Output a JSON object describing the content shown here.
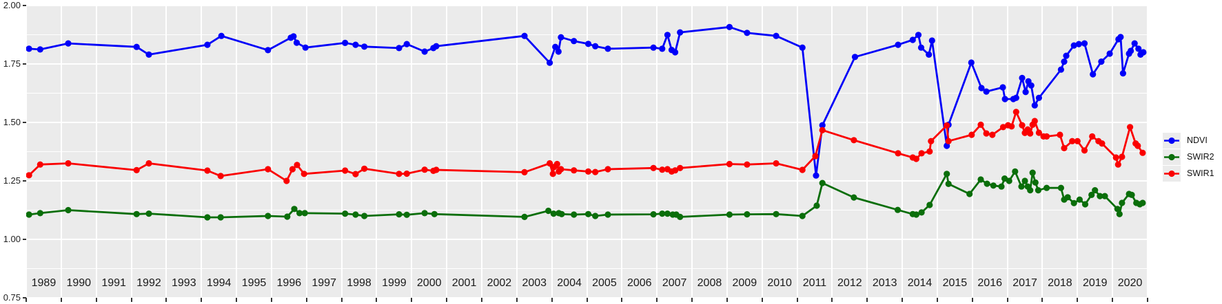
{
  "figure": {
    "panel_bg": "#ebebeb",
    "grid_color": "#ffffff",
    "axis_text_color": "#1f1f1f",
    "tick_color": "#333333"
  },
  "chart_data": {
    "type": "line",
    "title": "",
    "xlabel": "",
    "ylabel": "",
    "grid": true,
    "legend_position": "right",
    "x_axis": {
      "range": [
        1989,
        2021
      ],
      "year_labels": [
        "1989",
        "1990",
        "1991",
        "1992",
        "1993",
        "1994",
        "1995",
        "1996",
        "1997",
        "1998",
        "1999",
        "2000",
        "2001",
        "2002",
        "2003",
        "2004",
        "2005",
        "2006",
        "2007",
        "2008",
        "2009",
        "2010",
        "2011",
        "2012",
        "2013",
        "2014",
        "2015",
        "2016",
        "2017",
        "2018",
        "2019",
        "2020"
      ]
    },
    "y_axis": {
      "range": [
        0.75,
        2.0
      ],
      "breaks": [
        2.0,
        1.75,
        1.5,
        1.25,
        1.0,
        0.75
      ],
      "labels": [
        "2.00",
        "1.75",
        "1.50",
        "1.25",
        "1.00",
        "0.75"
      ],
      "minor_breaks": [
        1.875,
        1.625,
        1.375,
        1.125,
        0.875
      ]
    },
    "legend_entries": [
      {
        "label": "NDVI",
        "color": "#0000f8"
      },
      {
        "label": "SWIR2",
        "color": "#0a6e0a"
      },
      {
        "label": "SWIR1",
        "color": "#fa0000"
      }
    ],
    "series": [
      {
        "name": "NDVI",
        "color": "#0000f8",
        "points": [
          [
            1989.08,
            1.815
          ],
          [
            1989.4,
            1.812
          ],
          [
            1990.2,
            1.838
          ],
          [
            1992.15,
            1.823
          ],
          [
            1992.5,
            1.79
          ],
          [
            1994.17,
            1.832
          ],
          [
            1994.57,
            1.87
          ],
          [
            1995.9,
            1.809
          ],
          [
            1996.55,
            1.862
          ],
          [
            1996.63,
            1.868
          ],
          [
            1996.72,
            1.841
          ],
          [
            1996.97,
            1.82
          ],
          [
            1998.1,
            1.84
          ],
          [
            1998.4,
            1.832
          ],
          [
            1998.65,
            1.824
          ],
          [
            1999.64,
            1.818
          ],
          [
            1999.86,
            1.835
          ],
          [
            2000.37,
            1.803
          ],
          [
            2000.62,
            1.818
          ],
          [
            2000.7,
            1.826
          ],
          [
            2003.22,
            1.87
          ],
          [
            2003.94,
            1.755
          ],
          [
            2004.1,
            1.823
          ],
          [
            2004.19,
            1.803
          ],
          [
            2004.26,
            1.864
          ],
          [
            2004.63,
            1.848
          ],
          [
            2005.04,
            1.836
          ],
          [
            2005.24,
            1.826
          ],
          [
            2005.6,
            1.815
          ],
          [
            2006.9,
            1.82
          ],
          [
            2007.15,
            1.815
          ],
          [
            2007.3,
            1.874
          ],
          [
            2007.42,
            1.81
          ],
          [
            2007.52,
            1.8
          ],
          [
            2007.66,
            1.885
          ],
          [
            2009.07,
            1.908
          ],
          [
            2009.57,
            1.883
          ],
          [
            2010.4,
            1.87
          ],
          [
            2011.15,
            1.82
          ],
          [
            2011.54,
            1.273
          ],
          [
            2011.72,
            1.488
          ],
          [
            2012.65,
            1.78
          ],
          [
            2013.88,
            1.832
          ],
          [
            2014.3,
            1.853
          ],
          [
            2014.46,
            1.874
          ],
          [
            2014.54,
            1.82
          ],
          [
            2014.76,
            1.79
          ],
          [
            2014.85,
            1.85
          ],
          [
            2015.27,
            1.4
          ],
          [
            2015.32,
            1.49
          ],
          [
            2015.97,
            1.756
          ],
          [
            2016.26,
            1.647
          ],
          [
            2016.4,
            1.632
          ],
          [
            2016.87,
            1.65
          ],
          [
            2016.93,
            1.6
          ],
          [
            2017.17,
            1.6
          ],
          [
            2017.25,
            1.605
          ],
          [
            2017.42,
            1.69
          ],
          [
            2017.52,
            1.63
          ],
          [
            2017.6,
            1.676
          ],
          [
            2017.68,
            1.658
          ],
          [
            2017.78,
            1.573
          ],
          [
            2017.9,
            1.605
          ],
          [
            2018.53,
            1.726
          ],
          [
            2018.62,
            1.76
          ],
          [
            2018.68,
            1.785
          ],
          [
            2018.9,
            1.829
          ],
          [
            2019.04,
            1.835
          ],
          [
            2019.2,
            1.838
          ],
          [
            2019.44,
            1.706
          ],
          [
            2019.68,
            1.76
          ],
          [
            2019.92,
            1.794
          ],
          [
            2020.17,
            1.856
          ],
          [
            2020.23,
            1.865
          ],
          [
            2020.3,
            1.71
          ],
          [
            2020.47,
            1.794
          ],
          [
            2020.52,
            1.806
          ],
          [
            2020.63,
            1.838
          ],
          [
            2020.74,
            1.815
          ],
          [
            2020.8,
            1.79
          ],
          [
            2020.88,
            1.8
          ]
        ]
      },
      {
        "name": "SWIR2",
        "color": "#0a6e0a",
        "points": [
          [
            1989.08,
            1.106
          ],
          [
            1989.4,
            1.112
          ],
          [
            1990.2,
            1.125
          ],
          [
            1992.15,
            1.108
          ],
          [
            1992.5,
            1.11
          ],
          [
            1994.17,
            1.094
          ],
          [
            1994.55,
            1.094
          ],
          [
            1995.9,
            1.1
          ],
          [
            1996.45,
            1.097
          ],
          [
            1996.65,
            1.13
          ],
          [
            1996.8,
            1.112
          ],
          [
            1996.95,
            1.112
          ],
          [
            1998.1,
            1.11
          ],
          [
            1998.4,
            1.106
          ],
          [
            1998.65,
            1.1
          ],
          [
            1999.64,
            1.107
          ],
          [
            1999.86,
            1.105
          ],
          [
            2000.37,
            1.112
          ],
          [
            2000.65,
            1.108
          ],
          [
            2003.22,
            1.096
          ],
          [
            2003.9,
            1.122
          ],
          [
            2004.05,
            1.11
          ],
          [
            2004.2,
            1.112
          ],
          [
            2004.28,
            1.108
          ],
          [
            2004.63,
            1.106
          ],
          [
            2005.04,
            1.108
          ],
          [
            2005.24,
            1.1
          ],
          [
            2005.6,
            1.106
          ],
          [
            2006.9,
            1.107
          ],
          [
            2007.15,
            1.11
          ],
          [
            2007.3,
            1.11
          ],
          [
            2007.45,
            1.106
          ],
          [
            2007.55,
            1.106
          ],
          [
            2007.66,
            1.096
          ],
          [
            2009.07,
            1.106
          ],
          [
            2009.57,
            1.107
          ],
          [
            2010.4,
            1.108
          ],
          [
            2011.15,
            1.1
          ],
          [
            2011.56,
            1.144
          ],
          [
            2011.72,
            1.241
          ],
          [
            2012.62,
            1.179
          ],
          [
            2013.87,
            1.126
          ],
          [
            2014.3,
            1.108
          ],
          [
            2014.4,
            1.106
          ],
          [
            2014.55,
            1.115
          ],
          [
            2014.78,
            1.147
          ],
          [
            2015.27,
            1.28
          ],
          [
            2015.32,
            1.237
          ],
          [
            2015.92,
            1.194
          ],
          [
            2016.24,
            1.256
          ],
          [
            2016.42,
            1.238
          ],
          [
            2016.6,
            1.23
          ],
          [
            2016.83,
            1.226
          ],
          [
            2016.92,
            1.26
          ],
          [
            2017.05,
            1.25
          ],
          [
            2017.22,
            1.29
          ],
          [
            2017.4,
            1.226
          ],
          [
            2017.5,
            1.25
          ],
          [
            2017.58,
            1.226
          ],
          [
            2017.65,
            1.21
          ],
          [
            2017.72,
            1.285
          ],
          [
            2017.8,
            1.243
          ],
          [
            2017.88,
            1.21
          ],
          [
            2018.12,
            1.22
          ],
          [
            2018.53,
            1.22
          ],
          [
            2018.62,
            1.17
          ],
          [
            2018.72,
            1.18
          ],
          [
            2018.9,
            1.155
          ],
          [
            2019.06,
            1.17
          ],
          [
            2019.22,
            1.15
          ],
          [
            2019.4,
            1.19
          ],
          [
            2019.5,
            1.21
          ],
          [
            2019.64,
            1.185
          ],
          [
            2019.78,
            1.185
          ],
          [
            2020.14,
            1.13
          ],
          [
            2020.2,
            1.108
          ],
          [
            2020.27,
            1.156
          ],
          [
            2020.47,
            1.194
          ],
          [
            2020.55,
            1.19
          ],
          [
            2020.68,
            1.156
          ],
          [
            2020.78,
            1.15
          ],
          [
            2020.86,
            1.156
          ]
        ]
      },
      {
        "name": "SWIR1",
        "color": "#fa0000",
        "points": [
          [
            1989.08,
            1.274
          ],
          [
            1989.4,
            1.32
          ],
          [
            1990.2,
            1.325
          ],
          [
            1992.15,
            1.296
          ],
          [
            1992.5,
            1.325
          ],
          [
            1994.17,
            1.294
          ],
          [
            1994.55,
            1.271
          ],
          [
            1995.9,
            1.3
          ],
          [
            1996.43,
            1.25
          ],
          [
            1996.6,
            1.3
          ],
          [
            1996.73,
            1.318
          ],
          [
            1996.93,
            1.28
          ],
          [
            1998.1,
            1.294
          ],
          [
            1998.4,
            1.279
          ],
          [
            1998.65,
            1.302
          ],
          [
            1999.64,
            1.28
          ],
          [
            1999.86,
            1.281
          ],
          [
            2000.37,
            1.298
          ],
          [
            2000.62,
            1.293
          ],
          [
            2000.7,
            1.297
          ],
          [
            2003.22,
            1.287
          ],
          [
            2003.94,
            1.325
          ],
          [
            2004.03,
            1.28
          ],
          [
            2004.07,
            1.31
          ],
          [
            2004.15,
            1.322
          ],
          [
            2004.2,
            1.29
          ],
          [
            2004.26,
            1.3
          ],
          [
            2004.63,
            1.295
          ],
          [
            2005.04,
            1.29
          ],
          [
            2005.24,
            1.288
          ],
          [
            2005.6,
            1.3
          ],
          [
            2006.9,
            1.305
          ],
          [
            2007.15,
            1.298
          ],
          [
            2007.3,
            1.3
          ],
          [
            2007.42,
            1.29
          ],
          [
            2007.52,
            1.295
          ],
          [
            2007.66,
            1.305
          ],
          [
            2009.07,
            1.322
          ],
          [
            2009.57,
            1.32
          ],
          [
            2010.4,
            1.325
          ],
          [
            2011.15,
            1.297
          ],
          [
            2011.52,
            1.356
          ],
          [
            2011.72,
            1.467
          ],
          [
            2012.62,
            1.424
          ],
          [
            2013.88,
            1.368
          ],
          [
            2014.3,
            1.35
          ],
          [
            2014.4,
            1.344
          ],
          [
            2014.55,
            1.368
          ],
          [
            2014.78,
            1.376
          ],
          [
            2014.82,
            1.42
          ],
          [
            2015.27,
            1.487
          ],
          [
            2015.32,
            1.42
          ],
          [
            2015.98,
            1.447
          ],
          [
            2016.24,
            1.49
          ],
          [
            2016.4,
            1.453
          ],
          [
            2016.57,
            1.447
          ],
          [
            2016.88,
            1.48
          ],
          [
            2017.02,
            1.488
          ],
          [
            2017.12,
            1.483
          ],
          [
            2017.25,
            1.545
          ],
          [
            2017.42,
            1.488
          ],
          [
            2017.5,
            1.455
          ],
          [
            2017.58,
            1.47
          ],
          [
            2017.65,
            1.453
          ],
          [
            2017.72,
            1.49
          ],
          [
            2017.78,
            1.506
          ],
          [
            2017.9,
            1.456
          ],
          [
            2018.03,
            1.44
          ],
          [
            2018.12,
            1.44
          ],
          [
            2018.5,
            1.447
          ],
          [
            2018.62,
            1.39
          ],
          [
            2018.85,
            1.42
          ],
          [
            2019.0,
            1.42
          ],
          [
            2019.2,
            1.38
          ],
          [
            2019.42,
            1.44
          ],
          [
            2019.6,
            1.42
          ],
          [
            2019.7,
            1.41
          ],
          [
            2020.1,
            1.35
          ],
          [
            2020.16,
            1.32
          ],
          [
            2020.27,
            1.353
          ],
          [
            2020.5,
            1.48
          ],
          [
            2020.66,
            1.41
          ],
          [
            2020.72,
            1.4
          ],
          [
            2020.86,
            1.37
          ]
        ]
      }
    ]
  }
}
